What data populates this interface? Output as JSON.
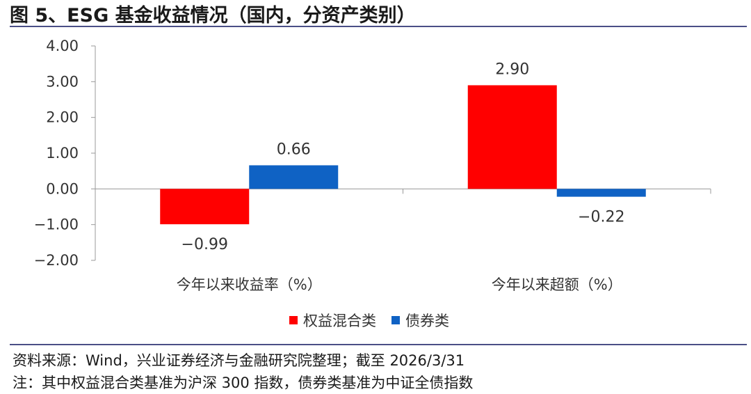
{
  "title": "图 5、ESG 基金收益情况（国内，分资产类别）",
  "source": "资料来源：Wind，兴业证券经济与金融研究院整理；截至 2026/3/31",
  "footnote": "注：其中权益混合类基准为沪深 300 指数，债券类基准为中证全债指数",
  "colors": {
    "equity": "#ff0000",
    "bond": "#0f62c4",
    "axis": "#999999",
    "rule": "#4a4f86"
  },
  "chart_data": {
    "type": "bar",
    "categories": [
      "今年以来收益率（%）",
      "今年以来超额（%）"
    ],
    "series": [
      {
        "name": "权益混合类",
        "values": [
          -0.99,
          2.9
        ],
        "labels": [
          "−0.99",
          "2.90"
        ]
      },
      {
        "name": "债券类",
        "values": [
          0.66,
          -0.22
        ],
        "labels": [
          "0.66",
          "−0.22"
        ]
      }
    ],
    "yticks": [
      4,
      3,
      2,
      1,
      0,
      -1,
      -2
    ],
    "ytick_labels": [
      "4.00",
      "3.00",
      "2.00",
      "1.00",
      "0.00",
      "−1.00",
      "−2.00"
    ],
    "ylim": [
      -2,
      4
    ],
    "legend_position": "bottom-center"
  }
}
